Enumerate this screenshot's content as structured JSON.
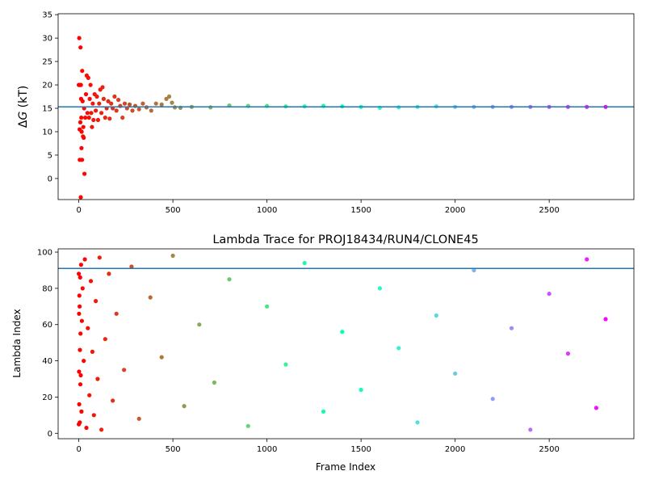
{
  "chart_data": [
    {
      "type": "scatter",
      "title": "",
      "xlabel": "",
      "ylabel": "ΔG (kT)",
      "ylabel_parts": {
        "delta": "Δ",
        "var": "G",
        "unit": " (kT)"
      },
      "xlim": [
        -110,
        2950
      ],
      "ylim": [
        -4.5,
        35.2
      ],
      "xticks": [
        0,
        500,
        1000,
        1500,
        2000,
        2500
      ],
      "xtick_labels": [
        "0",
        "500",
        "1000",
        "1500",
        "2000",
        "2500"
      ],
      "yticks": [
        0,
        5,
        10,
        15,
        20,
        25,
        30,
        35
      ],
      "ytick_labels": [
        "0",
        "5",
        "10",
        "15",
        "20",
        "25",
        "30",
        "35"
      ],
      "hline": 15.3,
      "hline_color": "#1f77b4",
      "colormap": "rainbow",
      "x_max": 2800,
      "series": [
        {
          "color_by": "frame_index",
          "points": [
            [
              0,
              20
            ],
            [
              2,
              30
            ],
            [
              4,
              10.5
            ],
            [
              5,
              4
            ],
            [
              6,
              20
            ],
            [
              8,
              12
            ],
            [
              9,
              28
            ],
            [
              10,
              -4
            ],
            [
              11,
              20
            ],
            [
              12,
              17
            ],
            [
              13,
              13
            ],
            [
              14,
              6.5
            ],
            [
              15,
              10
            ],
            [
              17,
              4
            ],
            [
              18,
              23
            ],
            [
              20,
              16.5
            ],
            [
              22,
              9
            ],
            [
              24,
              11
            ],
            [
              26,
              8.7
            ],
            [
              28,
              15
            ],
            [
              30,
              1
            ],
            [
              34,
              13
            ],
            [
              38,
              18
            ],
            [
              42,
              22
            ],
            [
              46,
              14
            ],
            [
              50,
              21.5
            ],
            [
              54,
              13
            ],
            [
              58,
              17
            ],
            [
              62,
              20
            ],
            [
              66,
              14
            ],
            [
              70,
              11
            ],
            [
              74,
              16
            ],
            [
              78,
              12.5
            ],
            [
              84,
              18
            ],
            [
              90,
              14.5
            ],
            [
              96,
              17.5
            ],
            [
              102,
              12.5
            ],
            [
              108,
              16
            ],
            [
              114,
              19
            ],
            [
              120,
              14
            ],
            [
              126,
              19.5
            ],
            [
              132,
              17
            ],
            [
              140,
              13
            ],
            [
              148,
              15
            ],
            [
              156,
              16.5
            ],
            [
              164,
              12.8
            ],
            [
              172,
              16
            ],
            [
              180,
              15
            ],
            [
              190,
              17.5
            ],
            [
              200,
              14.5
            ],
            [
              210,
              16.8
            ],
            [
              220,
              15.5
            ],
            [
              232,
              13
            ],
            [
              244,
              16
            ],
            [
              256,
              15
            ],
            [
              270,
              15.8
            ],
            [
              285,
              14.5
            ],
            [
              300,
              15.5
            ],
            [
              320,
              14.8
            ],
            [
              340,
              16
            ],
            [
              360,
              15.2
            ],
            [
              385,
              14.5
            ],
            [
              410,
              16
            ],
            [
              440,
              15.8
            ],
            [
              465,
              17
            ],
            [
              480,
              17.5
            ],
            [
              495,
              16.2
            ],
            [
              510,
              15.2
            ],
            [
              540,
              15.1
            ],
            [
              600,
              15.3
            ],
            [
              700,
              15.2
            ],
            [
              800,
              15.6
            ],
            [
              900,
              15.5
            ],
            [
              1000,
              15.5
            ],
            [
              1100,
              15.4
            ],
            [
              1200,
              15.4
            ],
            [
              1300,
              15.5
            ],
            [
              1400,
              15.4
            ],
            [
              1500,
              15.3
            ],
            [
              1600,
              15.1
            ],
            [
              1700,
              15.2
            ],
            [
              1800,
              15.3
            ],
            [
              1900,
              15.4
            ],
            [
              2000,
              15.3
            ],
            [
              2100,
              15.3
            ],
            [
              2200,
              15.3
            ],
            [
              2300,
              15.3
            ],
            [
              2400,
              15.3
            ],
            [
              2500,
              15.3
            ],
            [
              2600,
              15.3
            ],
            [
              2700,
              15.3
            ],
            [
              2800,
              15.3
            ]
          ]
        }
      ]
    },
    {
      "type": "scatter",
      "title": "Lambda Trace for PROJ18434/RUN4/CLONE45",
      "xlabel": "Frame Index",
      "ylabel": "Lambda Index",
      "xlim": [
        -110,
        2950
      ],
      "ylim": [
        -3,
        101.8
      ],
      "xticks": [
        0,
        500,
        1000,
        1500,
        2000,
        2500
      ],
      "xtick_labels": [
        "0",
        "500",
        "1000",
        "1500",
        "2000",
        "2500"
      ],
      "yticks": [
        0,
        20,
        40,
        60,
        80,
        100
      ],
      "ytick_labels": [
        "0",
        "20",
        "40",
        "60",
        "80",
        "100"
      ],
      "hline": 91,
      "hline_color": "#1f77b4",
      "colormap": "rainbow",
      "x_max": 2800,
      "series": [
        {
          "color_by": "frame_index",
          "points": [
            [
              0,
              5
            ],
            [
              0,
              88
            ],
            [
              1,
              66
            ],
            [
              1,
              34
            ],
            [
              2,
              16
            ],
            [
              3,
              76
            ],
            [
              4,
              70
            ],
            [
              5,
              6
            ],
            [
              6,
              46
            ],
            [
              7,
              86
            ],
            [
              8,
              27
            ],
            [
              9,
              55
            ],
            [
              10,
              32
            ],
            [
              12,
              93
            ],
            [
              14,
              12
            ],
            [
              16,
              62
            ],
            [
              20,
              80
            ],
            [
              26,
              40
            ],
            [
              32,
              96
            ],
            [
              40,
              3
            ],
            [
              48,
              58
            ],
            [
              56,
              21
            ],
            [
              64,
              84
            ],
            [
              72,
              45
            ],
            [
              80,
              10
            ],
            [
              90,
              73
            ],
            [
              100,
              30
            ],
            [
              110,
              97
            ],
            [
              120,
              2
            ],
            [
              140,
              52
            ],
            [
              160,
              88
            ],
            [
              180,
              18
            ],
            [
              200,
              66
            ],
            [
              240,
              35
            ],
            [
              280,
              92
            ],
            [
              320,
              8
            ],
            [
              380,
              75
            ],
            [
              440,
              42
            ],
            [
              500,
              98
            ],
            [
              560,
              15
            ],
            [
              640,
              60
            ],
            [
              720,
              28
            ],
            [
              800,
              85
            ],
            [
              900,
              4
            ],
            [
              1000,
              70
            ],
            [
              1100,
              38
            ],
            [
              1200,
              94
            ],
            [
              1300,
              12
            ],
            [
              1400,
              56
            ],
            [
              1500,
              24
            ],
            [
              1600,
              80
            ],
            [
              1700,
              47
            ],
            [
              1800,
              6
            ],
            [
              1900,
              65
            ],
            [
              2000,
              33
            ],
            [
              2100,
              90
            ],
            [
              2200,
              19
            ],
            [
              2300,
              58
            ],
            [
              2400,
              2
            ],
            [
              2500,
              77
            ],
            [
              2600,
              44
            ],
            [
              2700,
              96
            ],
            [
              2750,
              14
            ],
            [
              2800,
              63
            ]
          ]
        }
      ]
    }
  ]
}
